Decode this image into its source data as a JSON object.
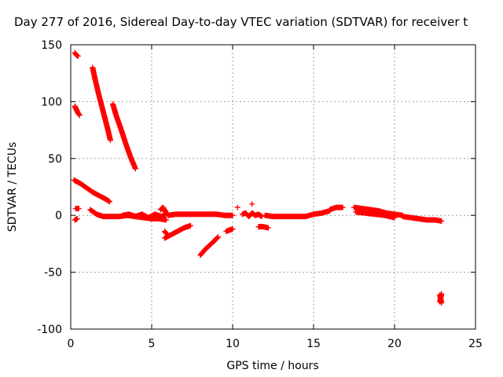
{
  "chart_data": {
    "type": "scatter",
    "title": "Day 277 of 2016, Sidereal Day-to-day VTEC variation (SDTVAR) for receiver t",
    "xlabel": "GPS time / hours",
    "ylabel": "SDTVAR / TECUs",
    "xlim": [
      0,
      25
    ],
    "ylim": [
      -100,
      150
    ],
    "xticks": [
      0,
      5,
      10,
      15,
      20,
      25
    ],
    "yticks": [
      -100,
      -50,
      0,
      50,
      100,
      150
    ],
    "xtick_labels": [
      "0",
      "5",
      "10",
      "15",
      "20",
      "25"
    ],
    "ytick_labels": [
      "-100",
      "-50",
      "0",
      "50",
      "100",
      "150"
    ],
    "grid": true,
    "marker": "plus",
    "color": "#ff0000",
    "series": [
      {
        "x": [
          0.25,
          0.35,
          0.45
        ],
        "y": [
          143,
          141,
          140
        ]
      },
      {
        "x": [
          0.25,
          0.35,
          0.45,
          0.55
        ],
        "y": [
          96,
          93,
          90,
          88
        ]
      },
      {
        "x": [
          0.2,
          0.6,
          1.0,
          1.4,
          1.8,
          2.2,
          2.4
        ],
        "y": [
          31,
          28,
          24,
          20,
          17,
          14,
          12
        ]
      },
      {
        "x": [
          0.3,
          0.5
        ],
        "y": [
          6,
          6
        ]
      },
      {
        "x": [
          0.25,
          0.4
        ],
        "y": [
          -4,
          -3
        ]
      },
      {
        "x": [
          1.35,
          1.5,
          1.7,
          1.9,
          2.1,
          2.3,
          2.45
        ],
        "y": [
          130,
          120,
          108,
          97,
          86,
          75,
          66
        ]
      },
      {
        "x": [
          2.6,
          2.8,
          3.1,
          3.4,
          3.7,
          4.0
        ],
        "y": [
          98,
          88,
          76,
          63,
          51,
          41
        ]
      },
      {
        "x": [
          1.2,
          1.6,
          2.0,
          2.5,
          3.0,
          3.5,
          4.0,
          4.5,
          5.0,
          5.5,
          5.9
        ],
        "y": [
          5,
          1,
          -1,
          -1,
          -1,
          0,
          -1,
          -2,
          -3,
          -3,
          -4
        ]
      },
      {
        "x": [
          3.2,
          3.6,
          4.0,
          4.4,
          4.8,
          5.2,
          5.6,
          6.0
        ],
        "y": [
          0,
          1,
          -1,
          1,
          -2,
          1,
          -1,
          2
        ]
      },
      {
        "x": [
          5.55,
          5.7,
          5.85
        ],
        "y": [
          5,
          7,
          3
        ]
      },
      {
        "x": [
          5.8,
          6.2,
          6.6,
          7.0,
          7.4
        ],
        "y": [
          -20,
          -17,
          -14,
          -11,
          -9
        ]
      },
      {
        "x": [
          5.8,
          5.9
        ],
        "y": [
          -14,
          -16
        ]
      },
      {
        "x": [
          6.0,
          6.5,
          7.0,
          7.5,
          8.0,
          8.5,
          9.0,
          9.5,
          10.0
        ],
        "y": [
          0,
          1,
          1,
          1,
          1,
          1,
          1,
          0,
          0
        ]
      },
      {
        "x": [
          8.0,
          8.3,
          8.6,
          8.9,
          9.1
        ],
        "y": [
          -35,
          -30,
          -26,
          -22,
          -19
        ]
      },
      {
        "x": [
          9.6,
          9.8,
          10.0
        ],
        "y": [
          -14,
          -13,
          -12
        ]
      },
      {
        "x": [
          10.3
        ],
        "y": [
          7
        ]
      },
      {
        "x": [
          10.6,
          10.8,
          11.0,
          11.2,
          11.4,
          11.6,
          11.8
        ],
        "y": [
          1,
          2,
          -1,
          2,
          0,
          1,
          -1
        ]
      },
      {
        "x": [
          11.2
        ],
        "y": [
          10
        ]
      },
      {
        "x": [
          11.6,
          11.9,
          12.2
        ],
        "y": [
          -10,
          -10,
          -11
        ]
      },
      {
        "x": [
          12.0,
          12.5,
          13.0,
          13.5,
          14.0
        ],
        "y": [
          0,
          -1,
          -1,
          -1,
          -1
        ]
      },
      {
        "x": [
          14.0,
          14.5,
          15.0,
          15.5,
          16.0
        ],
        "y": [
          -1,
          -1,
          1,
          2,
          4
        ]
      },
      {
        "x": [
          16.0,
          16.4,
          16.8
        ],
        "y": [
          5,
          7,
          7
        ]
      },
      {
        "x": [
          17.5,
          18.0,
          18.5,
          19.0,
          19.5,
          20.0,
          20.5
        ],
        "y": [
          7,
          6,
          5,
          4,
          2,
          1,
          0
        ]
      },
      {
        "x": [
          17.6,
          18.2,
          18.8,
          19.4,
          20.0
        ],
        "y": [
          3,
          2,
          1,
          0,
          -2
        ]
      },
      {
        "x": [
          20.5,
          21.0,
          21.5,
          22.0,
          22.5,
          22.9
        ],
        "y": [
          -1,
          -2,
          -3,
          -4,
          -4,
          -5
        ]
      },
      {
        "x": [
          22.8,
          22.9
        ],
        "y": [
          -70,
          -77
        ]
      },
      {
        "x": [
          22.8,
          22.9
        ],
        "y": [
          -76,
          -69
        ]
      }
    ]
  }
}
